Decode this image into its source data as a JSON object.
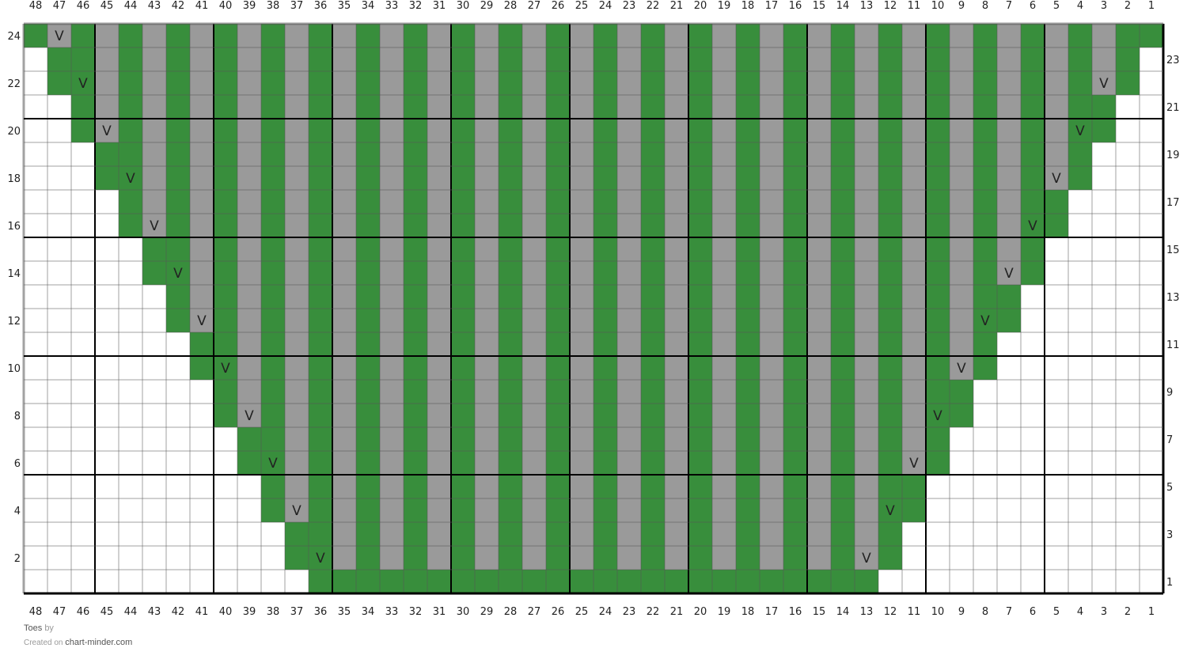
{
  "chart_data": {
    "type": "knitting-chart",
    "columns": 48,
    "rows": 24,
    "column_labels": [
      48,
      47,
      46,
      45,
      44,
      43,
      42,
      41,
      40,
      39,
      38,
      37,
      36,
      35,
      34,
      33,
      32,
      31,
      30,
      29,
      28,
      27,
      26,
      25,
      24,
      23,
      22,
      21,
      20,
      19,
      18,
      17,
      16,
      15,
      14,
      13,
      12,
      11,
      10,
      9,
      8,
      7,
      6,
      5,
      4,
      3,
      2,
      1
    ],
    "left_row_labels": [
      24,
      22,
      20,
      18,
      16,
      14,
      12,
      10,
      8,
      6,
      4,
      2
    ],
    "right_row_labels": [
      23,
      21,
      19,
      17,
      15,
      13,
      11,
      9,
      7,
      5,
      3,
      1
    ],
    "legend_codes": {
      "w": "empty",
      "g": "green",
      "s": "gray",
      "G": "green with slip-stitch V",
      "S": "gray with slip-stitch V"
    },
    "symbol": "V",
    "colors": {
      "g": "#388e3c",
      "s": "#9a9a9a",
      "w": "#ffffff"
    },
    "cells_top_to_bottom": [
      {
        "row": 24,
        "cells": "gSgsgsgs gsgsgsgs gsgsgsgs gsgsgsgs gsgsgsgs gsgsgsgg"
      },
      {
        "row": 23,
        "cells": "wggsgsgs gsgsgsgs gsgsgsgs gsgsgsgs gsgsgsgs gsgsgsgw"
      },
      {
        "row": 22,
        "cells": "wgGsgsgs gsgsgsgs gsgsgsgs gsgsgsgs gsgsgsgs gsgsgSgw"
      },
      {
        "row": 21,
        "cells": "wwgsgsgs gsgsgsgs gsgsgsgs gsgsgsgs gsgsgsgs gsgsggww"
      },
      {
        "row": 20,
        "cells": "wwgSgsgs gsgsgsgs gsgsgsgs gsgsgsgs gsgsgsgs gsgsGgww"
      },
      {
        "row": 19,
        "cells": "wwwggsgs gsgsgsgs gsgsgsgs gsgsgsgs gsgsgsgs gsgsgwww"
      },
      {
        "row": 18,
        "cells": "wwwgGsgs gsgsgsgs gsgsgsgs gsgsgsgs gsgsgsgs gsgSgwww"
      },
      {
        "row": 17,
        "cells": "wwwwgsgs gsgsgsgs gsgsgsgs gsgsgsgs gsgsgsgs gsggwwww"
      },
      {
        "row": 16,
        "cells": "wwwwgSgs gsgsgsgs gsgsgsgs gsgsgsgs gsgsgsgs gsGgwwww"
      },
      {
        "row": 15,
        "cells": "wwwwwggs gsgsgsgs gsgsgsgs gsgsgsgs gsgsgsgs gsgwwwww"
      },
      {
        "row": 14,
        "cells": "wwwwwgGs gsgsgsgs gsgsgsgs gsgsgsgs gsgsgsgs gSgwwwww"
      },
      {
        "row": 13,
        "cells": "wwwwwwgs gsgsgsgs gsgsgsgs gsgsgsgs gsgsgsgs ggwwwwww"
      },
      {
        "row": 12,
        "cells": "wwwwwwgS gsgsgsgs gsgsgsgs gsgsgsgs gsgsgsgs Ggwwwwww"
      },
      {
        "row": 11,
        "cells": "wwwwwwwg gsgsgsgs gsgsgsgs gsgsgsgs gsgsgsgs gwwwwwww"
      },
      {
        "row": 10,
        "cells": "wwwwwwwg Gsgsgsgs gsgsgsgs gsgsgsgs gsgsgsgS gwwwwwww"
      },
      {
        "row": 9,
        "cells": "wwwwwwww gsgsgsgs gsgsgsgs gsgsgsgs gsgsgsgg wwwwwwww"
      },
      {
        "row": 8,
        "cells": "wwwwwwww gSgsgsgs gsgsgsgs gsgsgsgs gsgsgsGg wwwwwwww"
      },
      {
        "row": 7,
        "cells": "wwwwwwww wggsgsgs gsgsgsgs gsgsgsgs gsgsgsgw wwwwwwww"
      },
      {
        "row": 6,
        "cells": "wwwwwwww wgGsgsgs gsgsgsgs gsgsgsgs gsgsgSgw wwwwwwww"
      },
      {
        "row": 5,
        "cells": "wwwwwwww wwgsgsgs gsgsgsgs gsgsgsgs gsgsggww wwwwwwww"
      },
      {
        "row": 4,
        "cells": "wwwwwwww wwgSgsgs gsgsgsgs gsgsgsgs gsgsGgww wwwwwwww"
      },
      {
        "row": 3,
        "cells": "wwwwwwww wwwggsgs gsgsgsgs gsgsgsgs gsgsgwww wwwwwwww"
      },
      {
        "row": 2,
        "cells": "wwwwwwww wwwgGsgs gsgsgsgs gsgsgsgs gsgSgwww wwwwwwww"
      },
      {
        "row": 1,
        "cells": "wwwwwwww wwwwgggg gggggggg gggggggg ggggwwww wwwwwwww"
      }
    ]
  },
  "footer": {
    "title": "Toes",
    "by": "by",
    "created_on": "Created on",
    "site": "chart-minder.com"
  }
}
